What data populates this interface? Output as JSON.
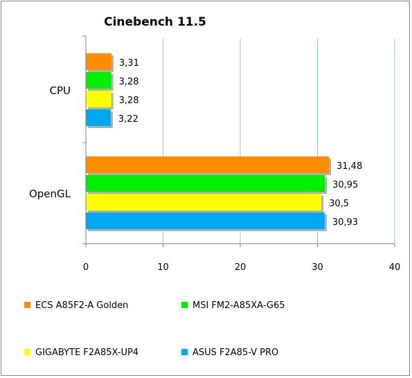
{
  "chart_data": {
    "type": "bar",
    "orientation": "horizontal",
    "title": "Cinebench 11.5",
    "categories": [
      "CPU",
      "OpenGL"
    ],
    "series": [
      {
        "name": "ECS A85F2-A Golden",
        "color": "#ff8c00",
        "values": [
          3.31,
          31.48
        ],
        "labels": [
          "3,31",
          "31,48"
        ]
      },
      {
        "name": "MSI FM2-A85XA-G65",
        "color": "#00ee00",
        "values": [
          3.28,
          30.95
        ],
        "labels": [
          "3,28",
          "30,95"
        ]
      },
      {
        "name": "GIGABYTE F2A85X-UP4",
        "color": "#ffff00",
        "values": [
          3.28,
          30.5
        ],
        "labels": [
          "3,28",
          "30,5"
        ]
      },
      {
        "name": "ASUS F2A85-V PRO",
        "color": "#00a8f0",
        "values": [
          3.22,
          30.93
        ],
        "labels": [
          "3,22",
          "30,93"
        ]
      }
    ],
    "xlim": [
      0,
      40
    ],
    "xticks": [
      0,
      10,
      20,
      30,
      40
    ],
    "grid": true,
    "legend": "bottom"
  }
}
